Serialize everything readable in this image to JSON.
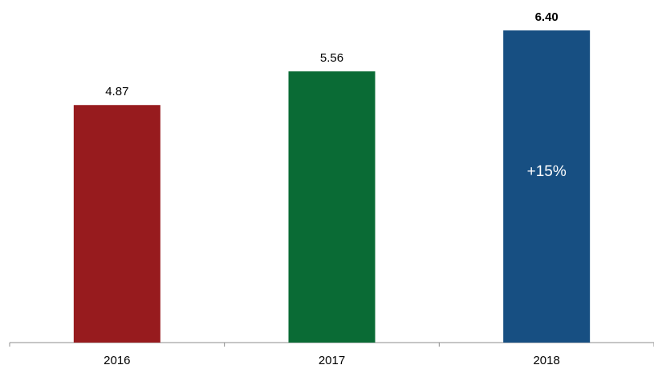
{
  "chart_data": {
    "type": "bar",
    "categories": [
      "2016",
      "2017",
      "2018"
    ],
    "values": [
      4.87,
      5.56,
      6.4
    ],
    "value_labels": [
      "4.87",
      "5.56",
      "6.40"
    ],
    "bold_value_labels": [
      false,
      false,
      true
    ],
    "colors": [
      "#971b1e",
      "#0a6b35",
      "#174f82"
    ],
    "inside_labels": [
      "",
      "",
      "+15%"
    ],
    "ylim": [
      0,
      6.4
    ],
    "grid": false,
    "legend": "none",
    "title": "",
    "xlabel": "",
    "ylabel": ""
  }
}
